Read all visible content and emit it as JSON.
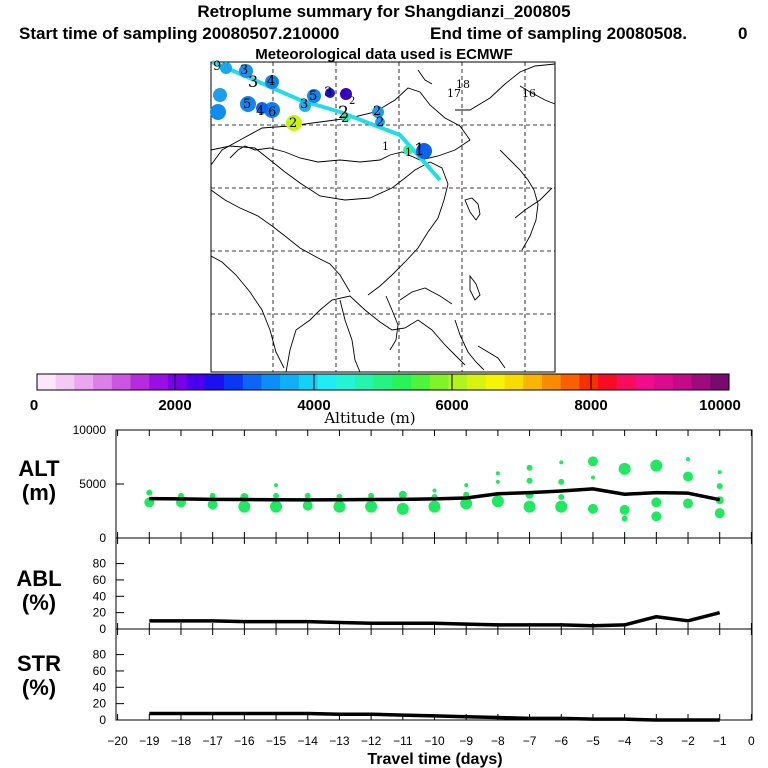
{
  "header": {
    "title": "Retroplume summary for Shangdianzi_200805",
    "start_text": "Start time of sampling 20080507.210000",
    "end_text": "End time of sampling 20080508.",
    "end_suffix": "0",
    "met_text": "Meteorological data used is ECMWF"
  },
  "map": {
    "track_color": "#22dde6",
    "day_labels": [
      "9",
      "3",
      "3",
      "4",
      "4",
      "5",
      "3",
      "6",
      "5",
      "3",
      "2",
      "2",
      "2",
      "2",
      "2",
      "1",
      "1",
      "1",
      "18",
      "17",
      "16",
      "2"
    ]
  },
  "colorbar": {
    "colors": [
      "#fce6fc",
      "#f6c8f6",
      "#eaa6ee",
      "#dc80e8",
      "#cc55e2",
      "#b62bde",
      "#9a0ee6",
      "#7a00ea",
      "#4a00ee",
      "#1c10f2",
      "#0838f6",
      "#0a66f8",
      "#0c8ef8",
      "#10b0f8",
      "#16d0f8",
      "#20ecf8",
      "#24f4d6",
      "#24f4ae",
      "#24f484",
      "#28f45a",
      "#4cf43c",
      "#80f42a",
      "#b0f41c",
      "#d8f40e",
      "#f4f404",
      "#f8dc00",
      "#f8b600",
      "#f88c00",
      "#f86000",
      "#f83000",
      "#f80c24",
      "#f80c60",
      "#f00c8a",
      "#dc0a8c",
      "#c40a88",
      "#a00a80",
      "#780a70"
    ],
    "tick_labels": [
      "0",
      "2000",
      "4000",
      "6000",
      "8000",
      "10000"
    ],
    "label": "Altitude (m)"
  },
  "chart_data": [
    {
      "type": "line",
      "name": "ALT",
      "ylabel_line1": "ALT",
      "ylabel_line2": "(m)",
      "ylim": [
        0,
        10000
      ],
      "yticks": [
        "0",
        "5000",
        "10000"
      ],
      "x": [
        -19,
        -18,
        -17,
        -16,
        -15,
        -14,
        -13,
        -12,
        -11,
        -10,
        -9,
        -8,
        -7,
        -6,
        -5,
        -4,
        -3,
        -2,
        -1
      ],
      "series": [
        {
          "name": "mean altitude",
          "values": [
            3650,
            3620,
            3580,
            3560,
            3540,
            3530,
            3540,
            3560,
            3580,
            3620,
            3700,
            4100,
            4200,
            4350,
            4550,
            4050,
            4200,
            4150,
            3550
          ]
        }
      ],
      "scatter_color": "#20e860",
      "scatter": [
        {
          "x": -19,
          "y": 3300,
          "s": 5
        },
        {
          "x": -19,
          "y": 4200,
          "s": 3
        },
        {
          "x": -18,
          "y": 3300,
          "s": 5
        },
        {
          "x": -18,
          "y": 3900,
          "s": 3
        },
        {
          "x": -17,
          "y": 3100,
          "s": 5
        },
        {
          "x": -17,
          "y": 3900,
          "s": 3
        },
        {
          "x": -16,
          "y": 2900,
          "s": 6
        },
        {
          "x": -16,
          "y": 3800,
          "s": 4
        },
        {
          "x": -15,
          "y": 2900,
          "s": 6
        },
        {
          "x": -15,
          "y": 3900,
          "s": 3
        },
        {
          "x": -15,
          "y": 4900,
          "s": 2
        },
        {
          "x": -14,
          "y": 3000,
          "s": 5
        },
        {
          "x": -14,
          "y": 3900,
          "s": 3
        },
        {
          "x": -13,
          "y": 2900,
          "s": 6
        },
        {
          "x": -13,
          "y": 3800,
          "s": 3
        },
        {
          "x": -12,
          "y": 2900,
          "s": 6
        },
        {
          "x": -12,
          "y": 3900,
          "s": 3
        },
        {
          "x": -11,
          "y": 2700,
          "s": 6
        },
        {
          "x": -11,
          "y": 4000,
          "s": 4
        },
        {
          "x": -10,
          "y": 2900,
          "s": 6
        },
        {
          "x": -10,
          "y": 3800,
          "s": 3
        },
        {
          "x": -10,
          "y": 4400,
          "s": 2
        },
        {
          "x": -9,
          "y": 3200,
          "s": 6
        },
        {
          "x": -9,
          "y": 4000,
          "s": 3
        },
        {
          "x": -9,
          "y": 4900,
          "s": 2
        },
        {
          "x": -8,
          "y": 3400,
          "s": 6
        },
        {
          "x": -8,
          "y": 5200,
          "s": 2
        },
        {
          "x": -8,
          "y": 6000,
          "s": 2
        },
        {
          "x": -7,
          "y": 2900,
          "s": 6
        },
        {
          "x": -7,
          "y": 4000,
          "s": 4
        },
        {
          "x": -7,
          "y": 5300,
          "s": 3
        },
        {
          "x": -7,
          "y": 6500,
          "s": 3
        },
        {
          "x": -6,
          "y": 2900,
          "s": 6
        },
        {
          "x": -6,
          "y": 3800,
          "s": 3
        },
        {
          "x": -6,
          "y": 5200,
          "s": 3
        },
        {
          "x": -6,
          "y": 7000,
          "s": 2
        },
        {
          "x": -5,
          "y": 2700,
          "s": 5
        },
        {
          "x": -5,
          "y": 5600,
          "s": 2
        },
        {
          "x": -5,
          "y": 7100,
          "s": 5
        },
        {
          "x": -4,
          "y": 1800,
          "s": 3
        },
        {
          "x": -4,
          "y": 2600,
          "s": 5
        },
        {
          "x": -4,
          "y": 6400,
          "s": 6
        },
        {
          "x": -3,
          "y": 2000,
          "s": 5
        },
        {
          "x": -3,
          "y": 3300,
          "s": 5
        },
        {
          "x": -3,
          "y": 6700,
          "s": 6
        },
        {
          "x": -2,
          "y": 3200,
          "s": 5
        },
        {
          "x": -2,
          "y": 5700,
          "s": 5
        },
        {
          "x": -2,
          "y": 7300,
          "s": 2
        },
        {
          "x": -1,
          "y": 2300,
          "s": 5
        },
        {
          "x": -1,
          "y": 3500,
          "s": 4
        },
        {
          "x": -1,
          "y": 4800,
          "s": 3
        },
        {
          "x": -1,
          "y": 6100,
          "s": 2
        }
      ]
    },
    {
      "type": "line",
      "name": "ABL",
      "ylabel_line1": "ABL",
      "ylabel_line2": "(%)",
      "ylim": [
        0,
        100
      ],
      "yticks": [
        "0",
        "20",
        "40",
        "60",
        "80"
      ],
      "x": [
        -19,
        -18,
        -17,
        -16,
        -15,
        -14,
        -13,
        -12,
        -11,
        -10,
        -9,
        -8,
        -7,
        -6,
        -5,
        -4,
        -3,
        -2,
        -1
      ],
      "series": [
        {
          "name": "ABL fraction",
          "values": [
            10,
            10,
            10,
            9,
            9,
            9,
            8,
            7,
            7,
            7,
            6,
            5,
            5,
            5,
            4,
            5,
            15,
            10,
            20
          ]
        }
      ]
    },
    {
      "type": "line",
      "name": "STR",
      "ylabel_line1": "STR",
      "ylabel_line2": "(%)",
      "ylim": [
        0,
        100
      ],
      "yticks": [
        "0",
        "20",
        "40",
        "60",
        "80"
      ],
      "x": [
        -19,
        -18,
        -17,
        -16,
        -15,
        -14,
        -13,
        -12,
        -11,
        -10,
        -9,
        -8,
        -7,
        -6,
        -5,
        -4,
        -3,
        -2,
        -1
      ],
      "series": [
        {
          "name": "stratospheric fraction",
          "values": [
            8,
            8,
            8,
            8,
            8,
            8,
            7,
            7,
            6,
            5,
            4,
            3,
            2,
            2,
            1,
            1,
            0,
            0,
            0
          ]
        }
      ]
    }
  ],
  "xaxis": {
    "tick_labels": [
      "−20",
      "−19",
      "−18",
      "−17",
      "−16",
      "−15",
      "−14",
      "−13",
      "−12",
      "−11",
      "−10",
      "−9",
      "−8",
      "−7",
      "−6",
      "−5",
      "−4",
      "−3",
      "−2",
      "−1",
      "0"
    ],
    "xlim": [
      -20,
      0
    ],
    "label": "Travel time (days)"
  }
}
